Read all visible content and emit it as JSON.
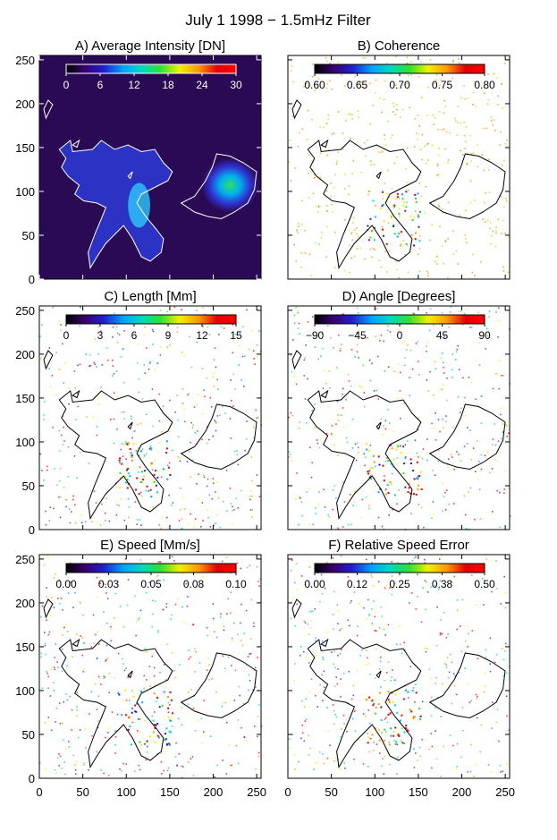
{
  "figure": {
    "title": "July 1 1998 − 1.5mHz Filter"
  },
  "colors": {
    "rainbow": [
      "#000000",
      "#3a006e",
      "#1f1fd0",
      "#00a0ff",
      "#00d8c0",
      "#30e030",
      "#f0f000",
      "#ff9900",
      "#e00000",
      "#ff0000"
    ],
    "intensity_bg": "#2a0a55",
    "contour_intensity": "#ffffff",
    "contour_other": "#000000"
  },
  "chart_data": [
    {
      "type": "heatmap",
      "title": "A) Average Intensity [DN]",
      "colorbar_ticks": [
        "0",
        "6",
        "12",
        "18",
        "24",
        "30"
      ],
      "xlim": [
        0,
        255
      ],
      "ylim": [
        0,
        255
      ],
      "y_ticks": [
        "0",
        "50",
        "100",
        "150",
        "200",
        "250"
      ],
      "x_ticks": []
    },
    {
      "type": "heatmap",
      "title": "B) Coherence",
      "colorbar_ticks": [
        "0.60",
        "0.65",
        "0.70",
        "0.75",
        "0.80"
      ],
      "xlim": [
        0,
        255
      ],
      "ylim": [
        0,
        255
      ],
      "y_ticks": [],
      "x_ticks": []
    },
    {
      "type": "heatmap",
      "title": "C) Length [Mm]",
      "colorbar_ticks": [
        "0",
        "3",
        "6",
        "9",
        "12",
        "15"
      ],
      "xlim": [
        0,
        255
      ],
      "ylim": [
        0,
        255
      ],
      "y_ticks": [
        "0",
        "50",
        "100",
        "150",
        "200",
        "250"
      ],
      "x_ticks": []
    },
    {
      "type": "heatmap",
      "title": "D) Angle [Degrees]",
      "colorbar_ticks": [
        "−90",
        "−45",
        "0",
        "45",
        "90"
      ],
      "xlim": [
        0,
        255
      ],
      "ylim": [
        0,
        255
      ],
      "y_ticks": [],
      "x_ticks": []
    },
    {
      "type": "heatmap",
      "title": "E) Speed [Mm/s]",
      "colorbar_ticks": [
        "0.00",
        "0.03",
        "0.05",
        "0.08",
        "0.10"
      ],
      "xlim": [
        0,
        255
      ],
      "ylim": [
        0,
        255
      ],
      "y_ticks": [
        "0",
        "50",
        "100",
        "150",
        "200",
        "250"
      ],
      "x_ticks": [
        "0",
        "50",
        "100",
        "150",
        "200",
        "250"
      ]
    },
    {
      "type": "heatmap",
      "title": "F) Relative Speed Error",
      "colorbar_ticks": [
        "0.00",
        "0.12",
        "0.25",
        "0.38",
        "0.50"
      ],
      "xlim": [
        0,
        255
      ],
      "ylim": [
        0,
        255
      ],
      "y_ticks": [],
      "x_ticks": [
        "0",
        "50",
        "100",
        "150",
        "200",
        "250"
      ]
    }
  ]
}
